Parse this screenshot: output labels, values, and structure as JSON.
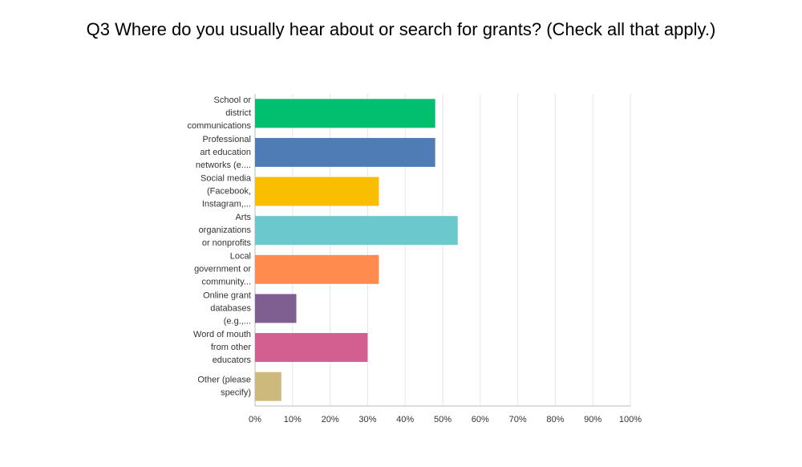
{
  "chart_data": {
    "type": "bar",
    "orientation": "horizontal",
    "title": "Q3 Where do you usually hear about or search for grants? (Check all that apply.)",
    "categories": [
      [
        "School or",
        "district",
        "communications"
      ],
      [
        "Professional",
        "art education",
        "networks (e...."
      ],
      [
        "Social media",
        "(Facebook,",
        "Instagram,..."
      ],
      [
        "Arts",
        "organizations",
        "or nonprofits"
      ],
      [
        "Local",
        "government or",
        "community..."
      ],
      [
        "Online grant",
        "databases",
        "(e.g.,..."
      ],
      [
        "Word of mouth",
        "from other",
        "educators"
      ],
      [
        "Other (please",
        "specify)"
      ]
    ],
    "values": [
      48,
      48,
      33,
      54,
      33,
      11,
      30,
      7
    ],
    "colors": [
      "#00bf6f",
      "#507cb6",
      "#f9be00",
      "#6bc8cd",
      "#ff8b4f",
      "#7f5f92",
      "#d35f91",
      "#cdb97b"
    ],
    "xlim": [
      0,
      100
    ],
    "xticks": [
      {
        "value": 0,
        "label": "0%"
      },
      {
        "value": 10,
        "label": "10%"
      },
      {
        "value": 20,
        "label": "20%"
      },
      {
        "value": 30,
        "label": "30%"
      },
      {
        "value": 40,
        "label": "40%"
      },
      {
        "value": 50,
        "label": "50%"
      },
      {
        "value": 60,
        "label": "60%"
      },
      {
        "value": 70,
        "label": "70%"
      },
      {
        "value": 80,
        "label": "80%"
      },
      {
        "value": 90,
        "label": "90%"
      },
      {
        "value": 100,
        "label": "100%"
      }
    ],
    "grid": true
  }
}
